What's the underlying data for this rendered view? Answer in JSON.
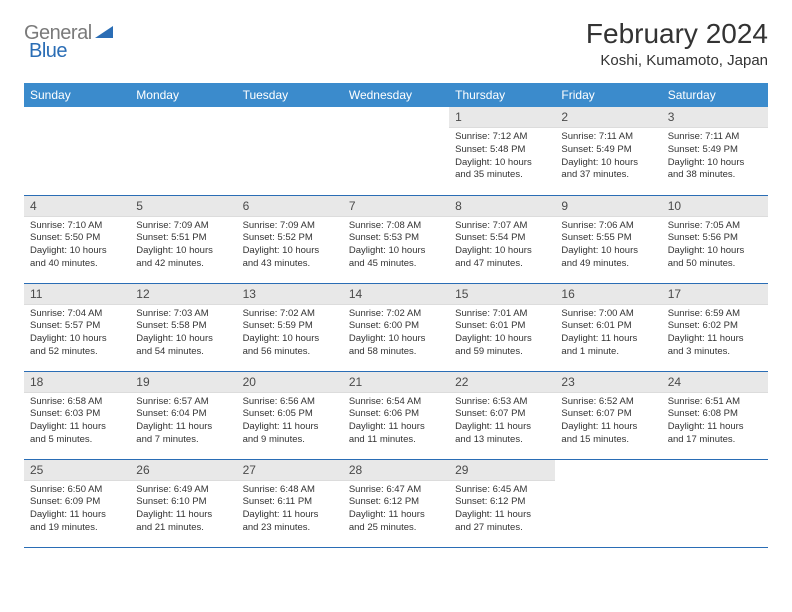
{
  "brand": {
    "part1": "General",
    "part2": "Blue"
  },
  "title": "February 2024",
  "location": "Koshi, Kumamoto, Japan",
  "colors": {
    "header_bg": "#3b8bcc",
    "header_text": "#ffffff",
    "daynum_bg": "#e8e8e8",
    "rule": "#2a6db5",
    "logo_gray": "#7a7a7a",
    "logo_blue": "#2a6db5",
    "body_text": "#333333"
  },
  "weekdays": [
    "Sunday",
    "Monday",
    "Tuesday",
    "Wednesday",
    "Thursday",
    "Friday",
    "Saturday"
  ],
  "first_weekday_index": 4,
  "days": [
    {
      "n": 1,
      "sunrise": "7:12 AM",
      "sunset": "5:48 PM",
      "daylight": "10 hours and 35 minutes."
    },
    {
      "n": 2,
      "sunrise": "7:11 AM",
      "sunset": "5:49 PM",
      "daylight": "10 hours and 37 minutes."
    },
    {
      "n": 3,
      "sunrise": "7:11 AM",
      "sunset": "5:49 PM",
      "daylight": "10 hours and 38 minutes."
    },
    {
      "n": 4,
      "sunrise": "7:10 AM",
      "sunset": "5:50 PM",
      "daylight": "10 hours and 40 minutes."
    },
    {
      "n": 5,
      "sunrise": "7:09 AM",
      "sunset": "5:51 PM",
      "daylight": "10 hours and 42 minutes."
    },
    {
      "n": 6,
      "sunrise": "7:09 AM",
      "sunset": "5:52 PM",
      "daylight": "10 hours and 43 minutes."
    },
    {
      "n": 7,
      "sunrise": "7:08 AM",
      "sunset": "5:53 PM",
      "daylight": "10 hours and 45 minutes."
    },
    {
      "n": 8,
      "sunrise": "7:07 AM",
      "sunset": "5:54 PM",
      "daylight": "10 hours and 47 minutes."
    },
    {
      "n": 9,
      "sunrise": "7:06 AM",
      "sunset": "5:55 PM",
      "daylight": "10 hours and 49 minutes."
    },
    {
      "n": 10,
      "sunrise": "7:05 AM",
      "sunset": "5:56 PM",
      "daylight": "10 hours and 50 minutes."
    },
    {
      "n": 11,
      "sunrise": "7:04 AM",
      "sunset": "5:57 PM",
      "daylight": "10 hours and 52 minutes."
    },
    {
      "n": 12,
      "sunrise": "7:03 AM",
      "sunset": "5:58 PM",
      "daylight": "10 hours and 54 minutes."
    },
    {
      "n": 13,
      "sunrise": "7:02 AM",
      "sunset": "5:59 PM",
      "daylight": "10 hours and 56 minutes."
    },
    {
      "n": 14,
      "sunrise": "7:02 AM",
      "sunset": "6:00 PM",
      "daylight": "10 hours and 58 minutes."
    },
    {
      "n": 15,
      "sunrise": "7:01 AM",
      "sunset": "6:01 PM",
      "daylight": "10 hours and 59 minutes."
    },
    {
      "n": 16,
      "sunrise": "7:00 AM",
      "sunset": "6:01 PM",
      "daylight": "11 hours and 1 minute."
    },
    {
      "n": 17,
      "sunrise": "6:59 AM",
      "sunset": "6:02 PM",
      "daylight": "11 hours and 3 minutes."
    },
    {
      "n": 18,
      "sunrise": "6:58 AM",
      "sunset": "6:03 PM",
      "daylight": "11 hours and 5 minutes."
    },
    {
      "n": 19,
      "sunrise": "6:57 AM",
      "sunset": "6:04 PM",
      "daylight": "11 hours and 7 minutes."
    },
    {
      "n": 20,
      "sunrise": "6:56 AM",
      "sunset": "6:05 PM",
      "daylight": "11 hours and 9 minutes."
    },
    {
      "n": 21,
      "sunrise": "6:54 AM",
      "sunset": "6:06 PM",
      "daylight": "11 hours and 11 minutes."
    },
    {
      "n": 22,
      "sunrise": "6:53 AM",
      "sunset": "6:07 PM",
      "daylight": "11 hours and 13 minutes."
    },
    {
      "n": 23,
      "sunrise": "6:52 AM",
      "sunset": "6:07 PM",
      "daylight": "11 hours and 15 minutes."
    },
    {
      "n": 24,
      "sunrise": "6:51 AM",
      "sunset": "6:08 PM",
      "daylight": "11 hours and 17 minutes."
    },
    {
      "n": 25,
      "sunrise": "6:50 AM",
      "sunset": "6:09 PM",
      "daylight": "11 hours and 19 minutes."
    },
    {
      "n": 26,
      "sunrise": "6:49 AM",
      "sunset": "6:10 PM",
      "daylight": "11 hours and 21 minutes."
    },
    {
      "n": 27,
      "sunrise": "6:48 AM",
      "sunset": "6:11 PM",
      "daylight": "11 hours and 23 minutes."
    },
    {
      "n": 28,
      "sunrise": "6:47 AM",
      "sunset": "6:12 PM",
      "daylight": "11 hours and 25 minutes."
    },
    {
      "n": 29,
      "sunrise": "6:45 AM",
      "sunset": "6:12 PM",
      "daylight": "11 hours and 27 minutes."
    }
  ],
  "labels": {
    "sunrise": "Sunrise:",
    "sunset": "Sunset:",
    "daylight": "Daylight:"
  }
}
